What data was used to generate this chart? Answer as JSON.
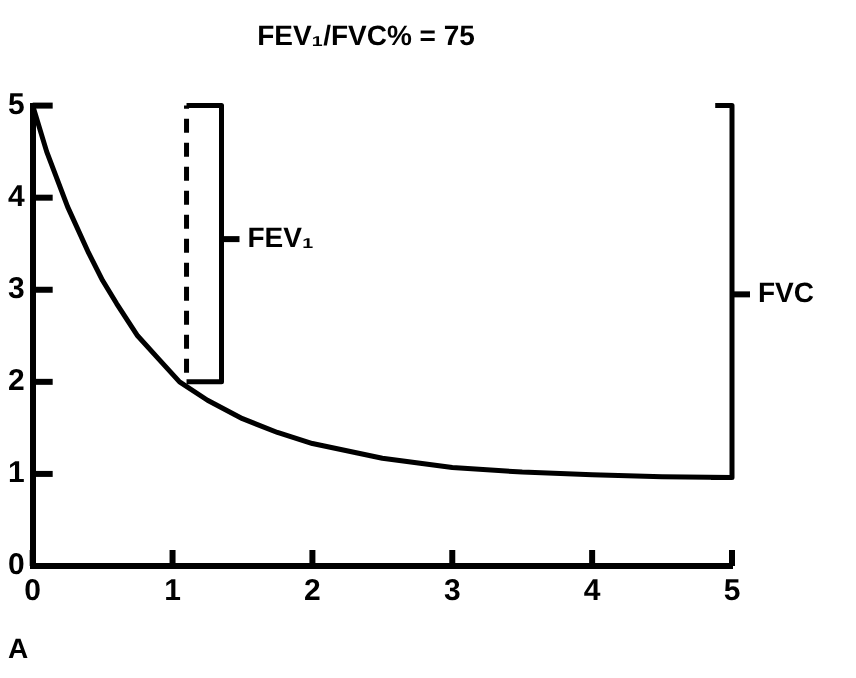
{
  "chart_data": {
    "type": "line",
    "title": "FEV₁/FVC% = 75",
    "xlim": [
      0,
      5
    ],
    "ylim": [
      0,
      5
    ],
    "xticks": [
      0,
      1,
      2,
      3,
      4,
      5
    ],
    "yticks": [
      0,
      1,
      2,
      3,
      4,
      5
    ],
    "grid": false,
    "legend": false,
    "marker": "none",
    "series": [
      {
        "color": "#000000",
        "line_style": "solid",
        "x": [
          0,
          0.1,
          0.25,
          0.4,
          0.5,
          0.6,
          0.75,
          0.9,
          1.05,
          1.25,
          1.5,
          1.75,
          2,
          2.5,
          3,
          3.5,
          4,
          4.5,
          5
        ],
        "values": [
          5,
          4.5,
          3.9,
          3.4,
          3.1,
          2.85,
          2.5,
          2.25,
          2,
          1.8,
          1.6,
          1.45,
          1.33,
          1.17,
          1.07,
          1.02,
          0.99,
          0.97,
          0.96
        ]
      },
      {
        "color": "#000000",
        "line_style": "dashed",
        "x": [
          1.1,
          1.1
        ],
        "values": [
          2.1,
          5
        ]
      },
      {
        "color": "#000000",
        "line_style": "solid",
        "x": [
          1.1,
          1.35,
          1.35,
          1.1
        ],
        "values": [
          5,
          5,
          2,
          2
        ]
      },
      {
        "color": "#000000",
        "line_style": "solid",
        "x": [
          4.88,
          5,
          5,
          4.85
        ],
        "values": [
          5,
          5,
          0.96,
          0.96
        ]
      }
    ],
    "annotations": [
      {
        "text": "FEV₁",
        "x": 1.35,
        "y": 3.55
      },
      {
        "text": "FVC",
        "x": 5,
        "y": 2.95
      },
      "A"
    ]
  }
}
